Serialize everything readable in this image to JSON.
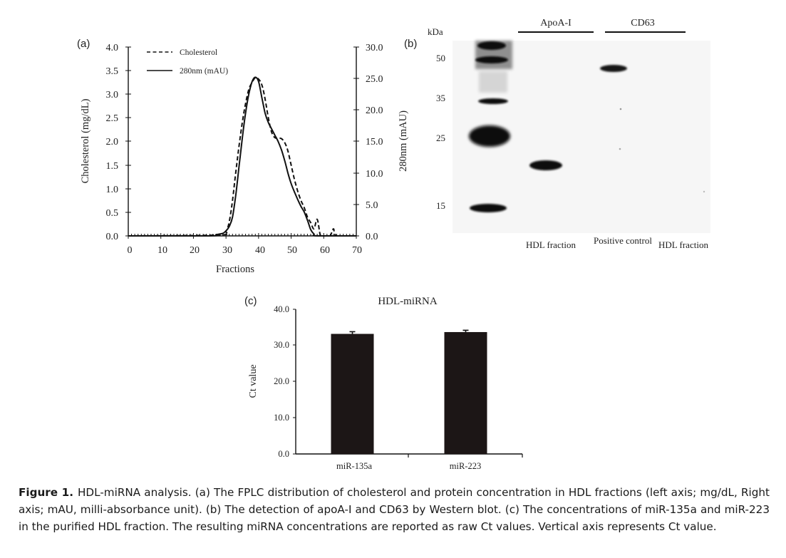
{
  "chart_data": [
    {
      "type": "line",
      "panel_label": "(a)",
      "xlabel": "Fractions",
      "ylabel": "Cholesterol (mg/dL)",
      "ylabel_right": "280nm (mAU)",
      "xlim": [
        0,
        70
      ],
      "ylim": [
        0,
        4.0
      ],
      "ylim_right": [
        0,
        30.0
      ],
      "x_ticks": [
        "0",
        "10",
        "20",
        "30",
        "40",
        "50",
        "60",
        "70"
      ],
      "y_ticks": [
        "0.0",
        "0.5",
        "1.0",
        "1.5",
        "2.0",
        "2.5",
        "3.0",
        "3.5",
        "4.0"
      ],
      "y_right_ticks": [
        "0.0",
        "5.0",
        "10.0",
        "15.0",
        "20.0",
        "25.0",
        "30.0"
      ],
      "legend_position": "top-left",
      "series": [
        {
          "name": "Cholesterol",
          "axis": "left",
          "style": "dashed",
          "x": [
            0,
            28,
            30,
            31,
            32,
            33,
            34,
            35,
            36,
            37,
            38,
            39,
            40,
            41,
            42,
            43,
            44,
            45,
            46,
            47,
            48,
            49,
            50,
            51,
            52,
            53,
            54,
            55,
            56,
            57,
            58,
            59,
            60,
            61,
            62,
            63,
            64,
            70
          ],
          "y": [
            0,
            0.02,
            0.1,
            0.3,
            0.75,
            1.35,
            1.9,
            2.4,
            2.8,
            3.1,
            3.25,
            3.35,
            3.32,
            3.2,
            2.9,
            2.5,
            2.2,
            2.08,
            2.07,
            2.06,
            1.98,
            1.8,
            1.5,
            1.2,
            0.95,
            0.75,
            0.6,
            0.4,
            0.28,
            0.15,
            0.35,
            0.0,
            0.0,
            0.0,
            0.0,
            0.15,
            0.0,
            0.0
          ]
        },
        {
          "name": "280nm (mAU)",
          "axis": "right",
          "style": "solid",
          "x": [
            0,
            25,
            27,
            29,
            30,
            31,
            32,
            33,
            34,
            35,
            36,
            37,
            38,
            39,
            40,
            41,
            42,
            43,
            44,
            45,
            46,
            47,
            48,
            49,
            50,
            51,
            52,
            53,
            54,
            55,
            56,
            57,
            58,
            70
          ],
          "y": [
            0,
            0.0,
            0.2,
            0.4,
            0.8,
            1.5,
            3.0,
            6.5,
            11.0,
            15.5,
            19.5,
            22.5,
            24.5,
            25.2,
            24.5,
            22.0,
            19.5,
            18.0,
            17.0,
            16.0,
            15.0,
            13.7,
            12.0,
            10.0,
            8.3,
            7.0,
            5.8,
            4.7,
            3.8,
            2.5,
            1.0,
            0.3,
            0.0,
            0.0
          ]
        }
      ]
    },
    {
      "type": "bar",
      "panel_label": "(c)",
      "title": "HDL-miRNA",
      "ylabel": "Ct value",
      "xlabel": "",
      "categories": [
        "miR-135a",
        "miR-223"
      ],
      "values": [
        33.2,
        33.7
      ],
      "errors": [
        0.6,
        0.5
      ],
      "ylim": [
        0,
        40
      ],
      "y_ticks": [
        "0.0",
        "10.0",
        "20.0",
        "30.0",
        "40.0"
      ],
      "bar_color": "#1c1616"
    }
  ],
  "western_blot": {
    "panel_label": "(b)",
    "kda_label": "kDa",
    "markers": [
      "50",
      "35",
      "25",
      "15"
    ],
    "groups": [
      "ApoA-I",
      "CD63"
    ],
    "lane_labels": [
      "HDL fraction",
      "Positive control",
      "HDL fraction"
    ]
  },
  "caption": {
    "label": "Figure 1.",
    "text": "HDL-miRNA analysis. (a) The FPLC distribution of cholesterol and protein concentration in HDL fractions (left axis; mg/dL, Right axis; mAU, milli-absorbance unit). (b) The detection of apoA-I and CD63 by Western blot. (c) The concentrations of miR-135a and miR-223 in the purified HDL fraction. The resulting miRNA concentrations are reported as raw Ct values. Vertical axis represents Ct value."
  }
}
